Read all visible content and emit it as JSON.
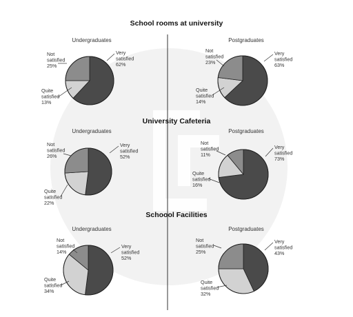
{
  "chart_data": [
    {
      "type": "pie",
      "title": "School rooms at university",
      "charts": [
        {
          "subtitle": "Undergraduates",
          "slices": [
            {
              "label": "Very satisfied",
              "value": 62,
              "text": "62%"
            },
            {
              "label": "Quite satisfied",
              "value": 13,
              "text": "13%"
            },
            {
              "label": "Not satisfied",
              "value": 25,
              "text": "25%"
            }
          ]
        },
        {
          "subtitle": "Postgraduates",
          "slices": [
            {
              "label": "Very satisfied",
              "value": 63,
              "text": "63%"
            },
            {
              "label": "Quite satisfied",
              "value": 14,
              "text": "14%"
            },
            {
              "label": "Not satisfied",
              "value": 23,
              "text": "23%"
            }
          ]
        }
      ]
    },
    {
      "type": "pie",
      "title": "University Cafeteria",
      "charts": [
        {
          "subtitle": "Undergraduates",
          "slices": [
            {
              "label": "Very satisfied",
              "value": 52,
              "text": "52%"
            },
            {
              "label": "Quite satisfied",
              "value": 22,
              "text": "22%"
            },
            {
              "label": "Not satisfied",
              "value": 26,
              "text": "26%"
            }
          ]
        },
        {
          "subtitle": "Postgraduates",
          "slices": [
            {
              "label": "Very satisfied",
              "value": 73,
              "text": "73%"
            },
            {
              "label": "Quite satisfied",
              "value": 16,
              "text": "16%"
            },
            {
              "label": "Not satisfied",
              "value": 11,
              "text": "11%"
            }
          ]
        }
      ]
    },
    {
      "type": "pie",
      "title": "Schoool Facilities",
      "charts": [
        {
          "subtitle": "Undergraduates",
          "slices": [
            {
              "label": "Very satisfied",
              "value": 52,
              "text": "52%"
            },
            {
              "label": "Quite satisfied",
              "value": 34,
              "text": "34%"
            },
            {
              "label": "Not satisfied",
              "value": 14,
              "text": "14%"
            }
          ]
        },
        {
          "subtitle": "Postgraduates",
          "slices": [
            {
              "label": "Very satisfied",
              "value": 43,
              "text": "43%"
            },
            {
              "label": "Quite satisfied",
              "value": 32,
              "text": "32%"
            },
            {
              "label": "Not satisfied",
              "value": 25,
              "text": "25%"
            }
          ]
        }
      ]
    }
  ],
  "colors": {
    "very_satisfied": "#4a4a4a",
    "quite_satisfied": "#d2d2d2",
    "not_satisfied": "#8c8c8c",
    "outline": "#1e1e1e",
    "divider": "#333333",
    "watermark": "#f1f1f1"
  }
}
